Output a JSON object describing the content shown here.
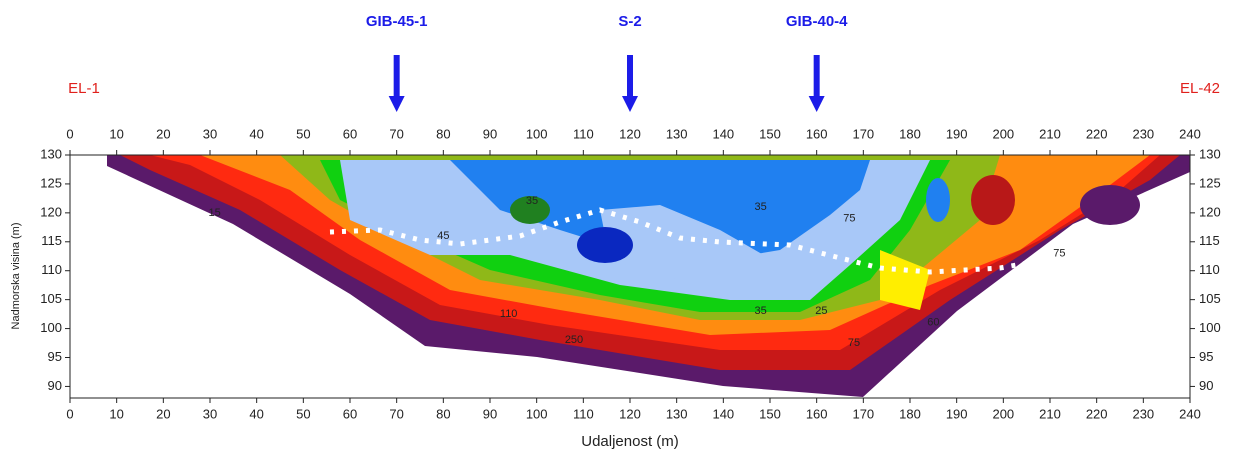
{
  "chart_data": {
    "type": "contour",
    "xlabel": "Udaljenost (m)",
    "ylabel": "Nadmorska visina (m)",
    "xlim": [
      0,
      240
    ],
    "ylim": [
      88,
      130
    ],
    "xticks": [
      0,
      10,
      20,
      30,
      40,
      50,
      60,
      70,
      80,
      90,
      100,
      110,
      120,
      130,
      140,
      150,
      160,
      170,
      180,
      190,
      200,
      210,
      220,
      230,
      240
    ],
    "yticks": [
      90,
      95,
      100,
      105,
      110,
      115,
      120,
      125,
      130
    ],
    "electrodes": [
      "EL-1",
      "EL-42"
    ],
    "boreholes": [
      {
        "label": "GIB-45-1",
        "x": 70,
        "color": "#1c1ce8"
      },
      {
        "label": "S-2",
        "x": 120,
        "color": "#1c1ce8"
      },
      {
        "label": "GIB-40-4",
        "x": 160,
        "color": "#1c1ce8"
      }
    ],
    "contour_labels": [
      {
        "value": 15,
        "x": 31,
        "y": 120
      },
      {
        "value": 45,
        "x": 80,
        "y": 116
      },
      {
        "value": 35,
        "x": 99,
        "y": 122
      },
      {
        "value": 35,
        "x": 148,
        "y": 121
      },
      {
        "value": 75,
        "x": 167,
        "y": 119
      },
      {
        "value": 75,
        "x": 212,
        "y": 113
      },
      {
        "value": 25,
        "x": 161,
        "y": 103
      },
      {
        "value": 35,
        "x": 148,
        "y": 103
      },
      {
        "value": 60,
        "x": 185,
        "y": 101
      },
      {
        "value": 75,
        "x": 168,
        "y": 97.5
      },
      {
        "value": 110,
        "x": 94,
        "y": 102.5
      },
      {
        "value": 250,
        "x": 108,
        "y": 98
      }
    ]
  }
}
